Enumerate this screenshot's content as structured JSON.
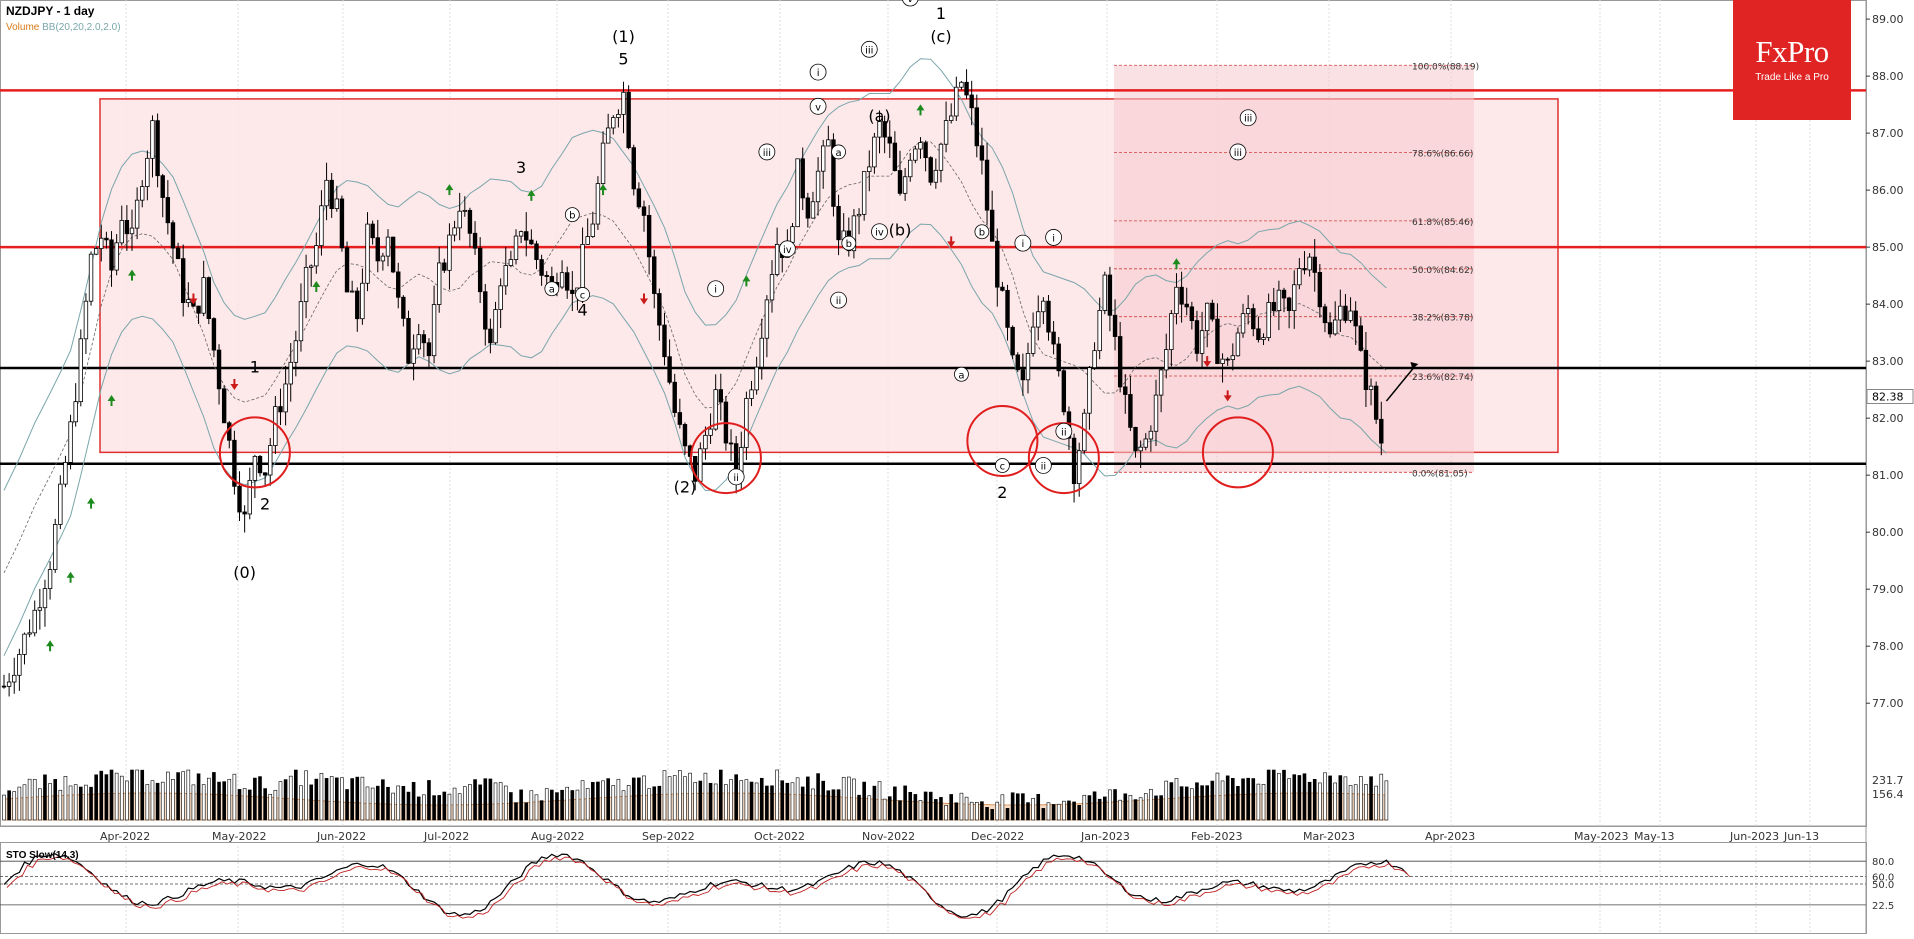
{
  "header": {
    "title": "NZDJPY - 1 day",
    "volume_label": "Volume",
    "bb_label": "BB(20,20,2.0,2.0)"
  },
  "logo": {
    "brand": "FxPro",
    "tagline": "Trade Like a Pro"
  },
  "stochastic": {
    "label": "STO Slow(14,3)",
    "levels": [
      "80.0",
      "60.0",
      "50.0",
      "22.5"
    ]
  },
  "colors": {
    "up_arrow": "#1d8a1d",
    "down_arrow": "#cc1a1a",
    "resistance_line": "#e61e1e",
    "support_line": "#000000",
    "box_fill": "#fde4e6",
    "box_stroke": "#e03030",
    "fib_zone": "#f6c8cc",
    "bb_line": "#7aa6aa",
    "volume_area": "#f3c7a0",
    "logo_bg": "#e02424"
  },
  "chart_data": {
    "type": "candlestick",
    "symbol": "NZDJPY",
    "timeframe": "1 day",
    "ylim": [
      76.6,
      89.3
    ],
    "y_ticks": [
      "89.00",
      "88.00",
      "87.00",
      "86.00",
      "85.00",
      "84.00",
      "83.00",
      "82.00",
      "81.00",
      "80.00",
      "79.00",
      "78.00",
      "77.00"
    ],
    "x_ticks": [
      "Apr-2022",
      "May-2022",
      "Jun-2022",
      "Jul-2022",
      "Aug-2022",
      "Sep-2022",
      "Oct-2022",
      "Nov-2022",
      "Dec-2022",
      "Jan-2023",
      "Feb-2023",
      "Mar-2023",
      "Apr-2023",
      "May-2023",
      "May-13",
      "Jun-2023",
      "Jun-13"
    ],
    "last_price": "82.38",
    "volume_labels": [
      "231.7",
      "156.4"
    ],
    "horizontal_lines": [
      {
        "price": 87.75,
        "color": "red"
      },
      {
        "price": 85.0,
        "color": "red"
      },
      {
        "price": 82.88,
        "color": "black"
      },
      {
        "price": 81.2,
        "color": "black"
      }
    ],
    "fibonacci": [
      {
        "ratio": "100.0%",
        "price": 88.19,
        "label": "100.0%(88.19)"
      },
      {
        "ratio": "78.6%",
        "price": 86.66,
        "label": "78.6%(86.66)"
      },
      {
        "ratio": "61.8%",
        "price": 85.46,
        "label": "61.8%(85.46)"
      },
      {
        "ratio": "50.0%",
        "price": 84.62,
        "label": "50.0%(84.62)"
      },
      {
        "ratio": "38.2%",
        "price": 83.78,
        "label": "38.2%(83.78)"
      },
      {
        "ratio": "23.6%",
        "price": 82.74,
        "label": "23.6%(82.74)"
      },
      {
        "ratio": "0.0%",
        "price": 81.05,
        "label": "0.0%(81.05)"
      }
    ],
    "series_path": [
      [
        0,
        77.3
      ],
      [
        3,
        77.9
      ],
      [
        6,
        78.6
      ],
      [
        9,
        79.5
      ],
      [
        11,
        80.6
      ],
      [
        13,
        81.8
      ],
      [
        15,
        83.2
      ],
      [
        17,
        84.8
      ],
      [
        19,
        85.2
      ],
      [
        21,
        84.6
      ],
      [
        23,
        85.6
      ],
      [
        25,
        85.1
      ],
      [
        27,
        86.3
      ],
      [
        29,
        87.1
      ],
      [
        31,
        85.9
      ],
      [
        33,
        85.0
      ],
      [
        35,
        84.2
      ],
      [
        37,
        83.8
      ],
      [
        39,
        84.3
      ],
      [
        41,
        83.2
      ],
      [
        43,
        82.1
      ],
      [
        45,
        81.0
      ],
      [
        47,
        80.2
      ],
      [
        49,
        81.4
      ],
      [
        51,
        81.1
      ],
      [
        53,
        82.0
      ],
      [
        55,
        82.6
      ],
      [
        57,
        83.4
      ],
      [
        59,
        84.4
      ],
      [
        61,
        85.0
      ],
      [
        63,
        86.2
      ],
      [
        65,
        85.6
      ],
      [
        67,
        84.2
      ],
      [
        69,
        83.8
      ],
      [
        71,
        85.2
      ],
      [
        73,
        84.8
      ],
      [
        75,
        85.3
      ],
      [
        77,
        84.0
      ],
      [
        79,
        83.1
      ],
      [
        81,
        83.7
      ],
      [
        83,
        83.1
      ],
      [
        85,
        84.5
      ],
      [
        87,
        85.1
      ],
      [
        89,
        85.8
      ],
      [
        91,
        85.2
      ],
      [
        93,
        84.3
      ],
      [
        95,
        83.2
      ],
      [
        97,
        84.5
      ],
      [
        99,
        84.6
      ],
      [
        101,
        85.4
      ],
      [
        103,
        85.0
      ],
      [
        105,
        84.6
      ],
      [
        107,
        84.3
      ],
      [
        109,
        84.8
      ],
      [
        111,
        84.1
      ],
      [
        113,
        84.8
      ],
      [
        115,
        85.5
      ],
      [
        117,
        86.6
      ],
      [
        119,
        87.4
      ],
      [
        121,
        87.7
      ],
      [
        123,
        86.2
      ],
      [
        125,
        85.6
      ],
      [
        127,
        84.1
      ],
      [
        129,
        83.2
      ],
      [
        131,
        82.1
      ],
      [
        133,
        81.4
      ],
      [
        135,
        81.0
      ],
      [
        137,
        81.7
      ],
      [
        139,
        82.4
      ],
      [
        141,
        81.7
      ],
      [
        143,
        81.0
      ],
      [
        145,
        82.3
      ],
      [
        147,
        83.1
      ],
      [
        149,
        84.2
      ],
      [
        151,
        85.1
      ],
      [
        153,
        84.9
      ],
      [
        155,
        86.3
      ],
      [
        157,
        85.7
      ],
      [
        159,
        86.3
      ],
      [
        161,
        86.8
      ],
      [
        163,
        85.0
      ],
      [
        165,
        85.1
      ],
      [
        167,
        85.7
      ],
      [
        169,
        86.5
      ],
      [
        171,
        87.1
      ],
      [
        173,
        86.7
      ],
      [
        175,
        85.8
      ],
      [
        177,
        86.7
      ],
      [
        179,
        87.0
      ],
      [
        181,
        86.3
      ],
      [
        183,
        86.8
      ],
      [
        185,
        87.3
      ],
      [
        187,
        87.9
      ],
      [
        189,
        87.3
      ],
      [
        191,
        86.4
      ],
      [
        193,
        85.0
      ],
      [
        195,
        84.0
      ],
      [
        197,
        82.9
      ],
      [
        199,
        82.5
      ],
      [
        201,
        83.8
      ],
      [
        203,
        84.3
      ],
      [
        205,
        83.1
      ],
      [
        207,
        82.3
      ],
      [
        209,
        81.1
      ],
      [
        211,
        81.9
      ],
      [
        213,
        83.4
      ],
      [
        215,
        84.3
      ],
      [
        217,
        83.3
      ],
      [
        219,
        82.2
      ],
      [
        221,
        81.3
      ],
      [
        223,
        81.6
      ],
      [
        225,
        82.3
      ],
      [
        227,
        83.2
      ],
      [
        229,
        84.4
      ],
      [
        231,
        84.0
      ],
      [
        233,
        83.3
      ],
      [
        235,
        83.8
      ],
      [
        237,
        83.2
      ],
      [
        239,
        82.9
      ],
      [
        241,
        83.5
      ],
      [
        243,
        83.9
      ],
      [
        245,
        83.5
      ],
      [
        247,
        83.8
      ],
      [
        249,
        84.0
      ],
      [
        251,
        83.8
      ],
      [
        253,
        84.7
      ],
      [
        255,
        84.9
      ],
      [
        257,
        84.2
      ],
      [
        259,
        83.4
      ],
      [
        261,
        83.9
      ],
      [
        263,
        84.0
      ],
      [
        265,
        83.0
      ],
      [
        267,
        82.4
      ],
      [
        269,
        81.6
      ],
      [
        270,
        82.1
      ]
    ],
    "wave_labels": [
      {
        "text": "(0)",
        "x": 47,
        "price": 79.2
      },
      {
        "text": "1",
        "x": 49,
        "price": 82.8
      },
      {
        "text": "2",
        "x": 51,
        "price": 80.4
      },
      {
        "text": "3",
        "x": 101,
        "price": 86.3
      },
      {
        "text": "4",
        "x": 113,
        "price": 83.8
      },
      {
        "text": "(1)",
        "x": 121,
        "price": 88.6
      },
      {
        "text": "5",
        "x": 121,
        "price": 88.2
      },
      {
        "text": "(2)",
        "x": 133,
        "price": 80.7
      },
      {
        "text": "1",
        "x": 183,
        "price": 89.0
      },
      {
        "text": "2",
        "x": 195,
        "price": 80.6
      },
      {
        "text": "a",
        "x": 107,
        "price": 84.2
      },
      {
        "text": "b",
        "x": 111,
        "price": 85.5
      },
      {
        "text": "c",
        "x": 113,
        "price": 84.1
      },
      {
        "text": "(a)",
        "x": 171,
        "price": 87.2
      },
      {
        "text": "(b)",
        "x": 175,
        "price": 85.2
      },
      {
        "text": "(c)",
        "x": 183,
        "price": 88.6
      },
      {
        "text": "a",
        "x": 187,
        "price": 82.7
      },
      {
        "text": "b",
        "x": 191,
        "price": 85.2
      },
      {
        "text": "c",
        "x": 195,
        "price": 81.1
      },
      {
        "text": "a",
        "x": 163,
        "price": 86.6
      },
      {
        "text": "b",
        "x": 165,
        "price": 85.0
      },
      {
        "text": "iv",
        "x": 171,
        "price": 85.2
      },
      {
        "text": "v",
        "x": 177,
        "price": 89.3
      },
      {
        "text": "i",
        "x": 139,
        "price": 84.2
      },
      {
        "text": "ii",
        "x": 143,
        "price": 80.9
      },
      {
        "text": "iii",
        "x": 149,
        "price": 86.6
      },
      {
        "text": "iv",
        "x": 153,
        "price": 84.9
      },
      {
        "text": "v",
        "x": 159,
        "price": 87.4
      },
      {
        "text": "i",
        "x": 159,
        "price": 88.0
      },
      {
        "text": "ii",
        "x": 163,
        "price": 84.0
      },
      {
        "text": "iii",
        "x": 169,
        "price": 88.4
      },
      {
        "text": "i",
        "x": 199,
        "price": 85.0
      },
      {
        "text": "ii",
        "x": 203,
        "price": 81.1
      },
      {
        "text": "i",
        "x": 205,
        "price": 85.1
      },
      {
        "text": "ii",
        "x": 207,
        "price": 81.7
      },
      {
        "text": "iii",
        "x": 243,
        "price": 87.2
      },
      {
        "text": "iii",
        "x": 241,
        "price": 86.6
      }
    ],
    "circles": [
      {
        "x": 49,
        "price": 81.4
      },
      {
        "x": 141,
        "price": 81.3
      },
      {
        "x": 195,
        "price": 81.6
      },
      {
        "x": 207,
        "price": 81.3
      },
      {
        "x": 241,
        "price": 81.4
      }
    ],
    "up_arrows": [
      [
        9,
        78.0
      ],
      [
        13,
        79.2
      ],
      [
        17,
        80.5
      ],
      [
        21,
        82.3
      ],
      [
        25,
        84.5
      ],
      [
        61,
        84.3
      ],
      [
        87,
        86.0
      ],
      [
        103,
        85.9
      ],
      [
        117,
        86.0
      ],
      [
        145,
        84.4
      ],
      [
        179,
        87.4
      ],
      [
        229,
        84.7
      ]
    ],
    "down_arrows": [
      [
        37,
        84.1
      ],
      [
        45,
        82.6
      ],
      [
        125,
        84.1
      ],
      [
        185,
        85.1
      ],
      [
        235,
        83.0
      ],
      [
        239,
        82.4
      ]
    ],
    "stochastic_levels": [
      80.0,
      60.0,
      50.0,
      22.5
    ]
  }
}
